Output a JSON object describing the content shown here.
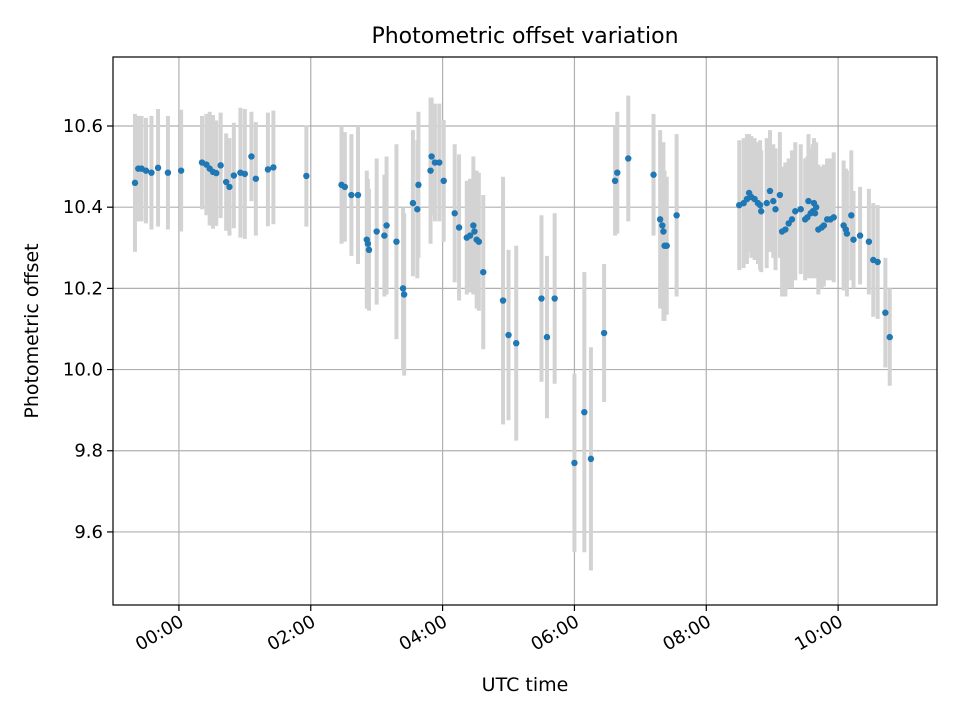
{
  "chart_data": {
    "type": "scatter",
    "title": "Photometric offset variation",
    "xlabel": "UTC time",
    "ylabel": "Photometric offset",
    "xlim": [
      "23:00",
      "11:30"
    ],
    "ylim": [
      9.42,
      10.77
    ],
    "x_ticks": [
      "00:00",
      "02:00",
      "04:00",
      "06:00",
      "08:00",
      "10:00"
    ],
    "y_ticks": [
      9.6,
      9.8,
      10.0,
      10.2,
      10.4,
      10.6
    ],
    "grid": true,
    "colors": {
      "points": "#1f77b4",
      "errorbars": "#d3d3d3",
      "grid": "#b0b0b0"
    },
    "series": [
      {
        "points": [
          [
            "23:20",
            10.46,
            0.17
          ],
          [
            "23:23",
            10.495,
            0.13
          ],
          [
            "23:26",
            10.495,
            0.13
          ],
          [
            "23:30",
            10.49,
            0.13
          ],
          [
            "23:35",
            10.485,
            0.14
          ],
          [
            "23:41",
            10.497,
            0.145
          ],
          [
            "23:50",
            10.485,
            0.14
          ],
          [
            "00:02",
            10.49,
            0.15
          ],
          [
            "00:21",
            10.51,
            0.115
          ],
          [
            "00:25",
            10.505,
            0.125
          ],
          [
            "00:28",
            10.495,
            0.14
          ],
          [
            "00:31",
            10.487,
            0.14
          ],
          [
            "00:34",
            10.484,
            0.13
          ],
          [
            "00:38",
            10.503,
            0.13
          ],
          [
            "00:43",
            10.462,
            0.12
          ],
          [
            "00:46",
            10.45,
            0.12
          ],
          [
            "00:50",
            10.478,
            0.13
          ],
          [
            "00:56",
            10.485,
            0.16
          ],
          [
            "01:00",
            10.482,
            0.16
          ],
          [
            "01:06",
            10.525,
            0.11
          ],
          [
            "01:10",
            10.47,
            0.14
          ],
          [
            "01:21",
            10.493,
            0.14
          ],
          [
            "01:26",
            10.498,
            0.14
          ],
          [
            "01:56",
            10.477,
            0.125
          ],
          [
            "02:28",
            10.455,
            0.145
          ],
          [
            "02:31",
            10.45,
            0.135
          ],
          [
            "02:37",
            10.43,
            0.15
          ],
          [
            "02:43",
            10.43,
            0.17
          ],
          [
            "02:51",
            10.32,
            0.17
          ],
          [
            "02:52",
            10.31,
            0.16
          ],
          [
            "02:53",
            10.295,
            0.15
          ],
          [
            "03:00",
            10.34,
            0.18
          ],
          [
            "03:07",
            10.33,
            0.15
          ],
          [
            "03:09",
            10.355,
            0.17
          ],
          [
            "03:18",
            10.315,
            0.24
          ],
          [
            "03:24",
            10.2,
            0.2
          ],
          [
            "03:25",
            10.185,
            0.2
          ],
          [
            "03:33",
            10.41,
            0.18
          ],
          [
            "03:37",
            10.395,
            0.17
          ],
          [
            "03:38",
            10.455,
            0.18
          ],
          [
            "03:49",
            10.49,
            0.18
          ],
          [
            "03:50",
            10.525,
            0.145
          ],
          [
            "03:53",
            10.51,
            0.145
          ],
          [
            "03:57",
            10.51,
            0.145
          ],
          [
            "04:01",
            10.465,
            0.15
          ],
          [
            "04:11",
            10.385,
            0.17
          ],
          [
            "04:15",
            10.35,
            0.18
          ],
          [
            "04:22",
            10.325,
            0.14
          ],
          [
            "04:25",
            10.33,
            0.14
          ],
          [
            "04:28",
            10.355,
            0.17
          ],
          [
            "04:29",
            10.34,
            0.14
          ],
          [
            "04:31",
            10.32,
            0.17
          ],
          [
            "04:33",
            10.315,
            0.17
          ],
          [
            "04:37",
            10.24,
            0.19
          ],
          [
            "04:55",
            10.17,
            0.305
          ],
          [
            "05:00",
            10.085,
            0.21
          ],
          [
            "05:07",
            10.065,
            0.24
          ],
          [
            "05:30",
            10.175,
            0.205
          ],
          [
            "05:35",
            10.08,
            0.2
          ],
          [
            "05:42",
            10.175,
            0.21
          ],
          [
            "06:00",
            9.77,
            0.22
          ],
          [
            "06:09",
            9.895,
            0.345
          ],
          [
            "06:15",
            9.78,
            0.275
          ],
          [
            "06:27",
            10.09,
            0.17
          ],
          [
            "06:37",
            10.465,
            0.135
          ],
          [
            "06:39",
            10.485,
            0.15
          ],
          [
            "06:49",
            10.52,
            0.155
          ],
          [
            "07:12",
            10.48,
            0.15
          ],
          [
            "07:18",
            10.37,
            0.22
          ],
          [
            "07:20",
            10.355,
            0.19
          ],
          [
            "07:21",
            10.34,
            0.22
          ],
          [
            "07:22",
            10.305,
            0.185
          ],
          [
            "07:24",
            10.305,
            0.17
          ],
          [
            "07:33",
            10.38,
            0.2
          ],
          [
            "08:30",
            10.405,
            0.16
          ],
          [
            "08:34",
            10.41,
            0.16
          ],
          [
            "08:37",
            10.42,
            0.16
          ],
          [
            "08:39",
            10.435,
            0.145
          ],
          [
            "08:41",
            10.425,
            0.15
          ],
          [
            "08:44",
            10.42,
            0.15
          ],
          [
            "08:47",
            10.41,
            0.15
          ],
          [
            "08:49",
            10.405,
            0.16
          ],
          [
            "08:50",
            10.39,
            0.15
          ],
          [
            "08:55",
            10.41,
            0.16
          ],
          [
            "08:58",
            10.44,
            0.15
          ],
          [
            "09:01",
            10.415,
            0.14
          ],
          [
            "09:03",
            10.395,
            0.15
          ],
          [
            "09:07",
            10.43,
            0.155
          ],
          [
            "09:09",
            10.34,
            0.16
          ],
          [
            "09:12",
            10.345,
            0.165
          ],
          [
            "09:15",
            10.36,
            0.16
          ],
          [
            "09:18",
            10.37,
            0.17
          ],
          [
            "09:21",
            10.39,
            0.17
          ],
          [
            "09:26",
            10.395,
            0.16
          ],
          [
            "09:30",
            10.37,
            0.15
          ],
          [
            "09:32",
            10.375,
            0.15
          ],
          [
            "09:33",
            10.415,
            0.165
          ],
          [
            "09:35",
            10.385,
            0.16
          ],
          [
            "09:37",
            10.39,
            0.165
          ],
          [
            "09:38",
            10.41,
            0.16
          ],
          [
            "09:39",
            10.385,
            0.16
          ],
          [
            "09:40",
            10.4,
            0.16
          ],
          [
            "09:42",
            10.345,
            0.16
          ],
          [
            "09:45",
            10.35,
            0.15
          ],
          [
            "09:47",
            10.355,
            0.15
          ],
          [
            "09:50",
            10.37,
            0.15
          ],
          [
            "09:53",
            10.37,
            0.15
          ],
          [
            "09:56",
            10.375,
            0.16
          ],
          [
            "10:05",
            10.355,
            0.16
          ],
          [
            "10:07",
            10.345,
            0.15
          ],
          [
            "10:08",
            10.335,
            0.155
          ],
          [
            "10:12",
            10.38,
            0.16
          ],
          [
            "10:14",
            10.32,
            0.12
          ],
          [
            "10:20",
            10.33,
            0.12
          ],
          [
            "10:28",
            10.315,
            0.13
          ],
          [
            "10:32",
            10.27,
            0.14
          ],
          [
            "10:36",
            10.265,
            0.14
          ],
          [
            "10:43",
            10.14,
            0.135
          ],
          [
            "10:47",
            10.08,
            0.12
          ]
        ]
      }
    ]
  }
}
